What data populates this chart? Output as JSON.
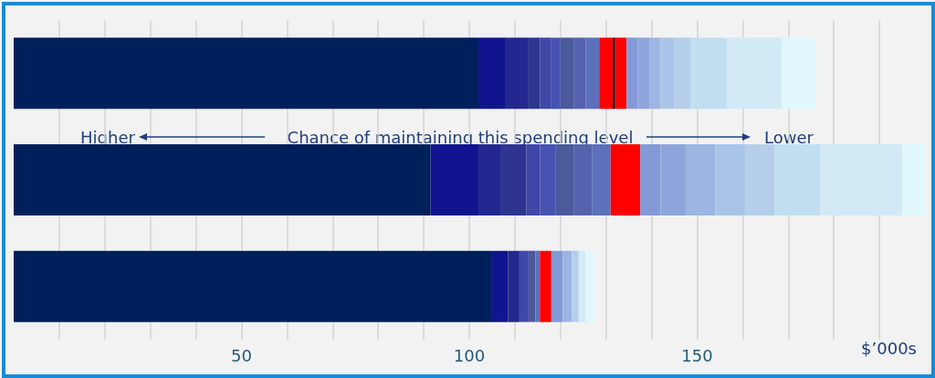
{
  "chart_data": {
    "type": "bar",
    "orientation": "horizontal",
    "stacked": true,
    "categories": [
      null,
      null,
      null
    ],
    "series": [
      {
        "color": "#00205b",
        "values": [
          102,
          91.5,
          105
        ]
      },
      {
        "color": "#10148f",
        "values": [
          6,
          10.5,
          3.5
        ]
      },
      {
        "color": "#22288f",
        "values": [
          5,
          5,
          2.5
        ]
      },
      {
        "color": "#2e3591",
        "values": [
          2.5,
          5.5,
          null
        ]
      },
      {
        "color": "#3f47a8",
        "values": [
          2.5,
          3,
          2
        ]
      },
      {
        "color": "#4753b3",
        "values": [
          2,
          3.5,
          null
        ]
      },
      {
        "color": "#4a5a9b",
        "values": [
          3,
          4,
          1.5
        ]
      },
      {
        "color": "#5562ae",
        "values": [
          2.5,
          4,
          null
        ]
      },
      {
        "color": "#5d70bb",
        "values": [
          3,
          4,
          1
        ]
      },
      {
        "color": "#ff0000",
        "values": [
          3,
          6.5,
          2.5
        ]
      },
      {
        "color": "#000000",
        "values": [
          0.5,
          null,
          null
        ]
      },
      {
        "color": "#ff0000",
        "values": [
          2.5,
          null,
          null
        ]
      },
      {
        "color": "#8399d8",
        "values": [
          2.5,
          4.5,
          2.5
        ]
      },
      {
        "color": "#8ea5dc",
        "values": [
          2.5,
          5.5,
          null
        ]
      },
      {
        "color": "#9db5e2",
        "values": [
          2.5,
          6.5,
          2
        ]
      },
      {
        "color": "#aac4e8",
        "values": [
          3,
          6.5,
          null
        ]
      },
      {
        "color": "#b5cfea",
        "values": [
          3.5,
          6.5,
          1.5
        ]
      },
      {
        "color": "#c2def1",
        "values": [
          8,
          10,
          null
        ]
      },
      {
        "color": "#d2eaf6",
        "values": [
          12,
          18,
          1.5
        ]
      },
      {
        "color": "#e0f8fb",
        "values": [
          7.5,
          5,
          2
        ]
      }
    ],
    "xlim": [
      0,
      200
    ],
    "xticks": [
      {
        "value": 10,
        "label": null
      },
      {
        "value": 20,
        "label": null
      },
      {
        "value": 30,
        "label": null
      },
      {
        "value": 40,
        "label": null
      },
      50,
      {
        "value": 60,
        "label": null
      },
      {
        "value": 70,
        "label": null
      },
      {
        "value": 80,
        "label": null
      },
      {
        "value": 90,
        "label": null
      },
      100,
      {
        "value": 110,
        "label": null
      },
      {
        "value": 120,
        "label": null
      },
      {
        "value": 130,
        "label": null
      },
      {
        "value": 140,
        "label": null
      },
      150,
      {
        "value": 160,
        "label": null
      },
      {
        "value": 170,
        "label": null
      },
      {
        "value": 180,
        "label": null
      },
      {
        "value": 190,
        "label": null
      }
    ],
    "xlabel": "$’000s",
    "grid": "x",
    "annotations": [
      "Higher",
      "Chance of maintaining this spending level",
      "Lower"
    ]
  }
}
